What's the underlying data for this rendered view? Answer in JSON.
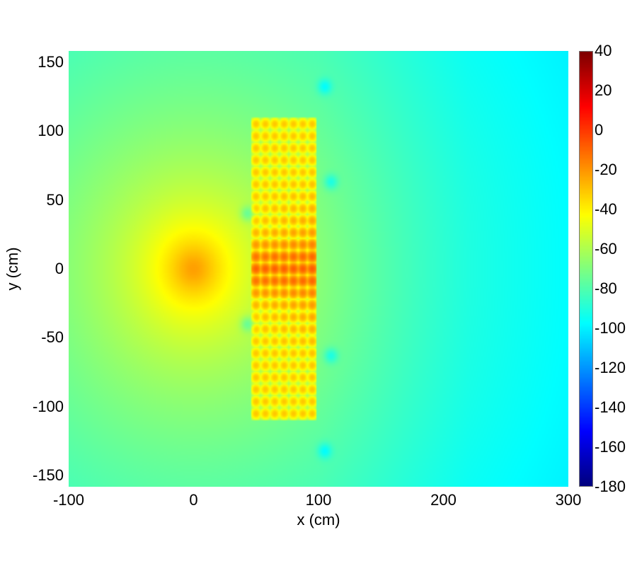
{
  "chart_data": {
    "type": "heatmap",
    "title": "",
    "xlabel": "x (cm)",
    "ylabel": "y (cm)",
    "xlim": [
      -100,
      300
    ],
    "ylim": [
      -158,
      158
    ],
    "xticks": [
      "-100",
      "0",
      "100",
      "200",
      "300"
    ],
    "yticks": [
      "150",
      "100",
      "50",
      "0",
      "-50",
      "-100",
      "-150"
    ],
    "colorbar": {
      "colormap": "jet",
      "range": [
        -180,
        40
      ],
      "ticks": [
        "40",
        "20",
        "0",
        "-20",
        "-40",
        "-60",
        "-80",
        "-100",
        "-120",
        "-140",
        "-160",
        "-180"
      ]
    },
    "source": {
      "x": 0,
      "y": 0,
      "peak_value": -10
    },
    "element_grid": {
      "x_range": [
        50,
        95
      ],
      "y_range": [
        -105,
        105
      ],
      "columns": 7,
      "rows": 25,
      "peak_value_center": 0
    },
    "minima": [
      {
        "x": 105,
        "y": 132
      },
      {
        "x": 105,
        "y": -132
      },
      {
        "x": 110,
        "y": 63
      },
      {
        "x": 110,
        "y": -63
      },
      {
        "x": 43,
        "y": 40
      },
      {
        "x": 43,
        "y": -40
      }
    ],
    "background_far_field_value": -100
  }
}
